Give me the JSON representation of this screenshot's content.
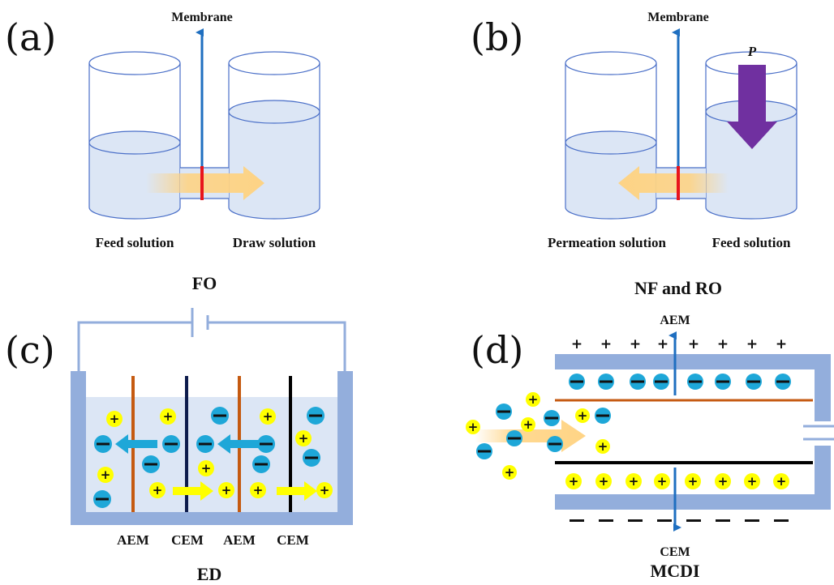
{
  "panel_a": {
    "letter": "(a)",
    "membrane_label": "Membrane",
    "left_label": "Feed solution",
    "right_label": "Draw solution",
    "title": "FO"
  },
  "panel_b": {
    "letter": "(b)",
    "membrane_label": "Membrane",
    "pressure_label": "P",
    "left_label": "Permeation solution",
    "right_label": "Feed solution",
    "title": "NF and RO"
  },
  "panel_c": {
    "letter": "(c)",
    "membrane_labels": [
      "AEM",
      "CEM",
      "AEM",
      "CEM"
    ],
    "title": "ED",
    "plus_sign": "+"
  },
  "panel_d": {
    "letter": "(d)",
    "top_membrane_label": "AEM",
    "bottom_membrane_label": "CEM",
    "title": "MCDI",
    "plus_sign": "+",
    "top_charge_signs": [
      "+",
      "+",
      "+",
      "+",
      "+",
      "+",
      "+",
      "+"
    ]
  },
  "colors": {
    "solution": "#dce6f5",
    "container_outline": "#4a6fc8",
    "membrane_red": "#e8141c",
    "blue_arrow": "#1f6fc0",
    "purple_arrow": "#7030a0",
    "flow_arrow": "#ffd27f",
    "electrode": "#93aedc",
    "aem_line": "#c55a11",
    "cem_line": "#000000",
    "cation": "#ffff00",
    "anion": "#1ea7d8"
  }
}
